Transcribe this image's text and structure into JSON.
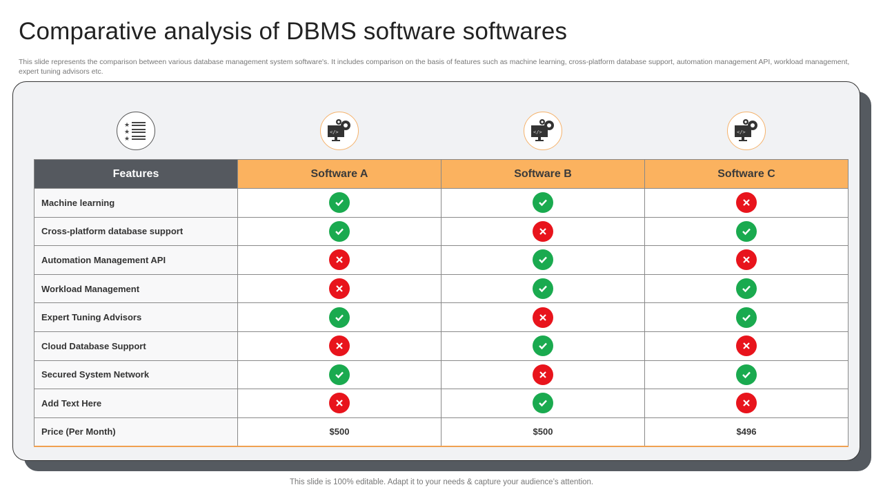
{
  "title": "Comparative analysis of DBMS software softwares",
  "description": "This slide represents the comparison between various database management system software's. It includes comparison on the basis of features such as machine learning, cross-platform database support, automation management API,  workload management, expert tuning advisors etc.",
  "icons": [
    "feature-list-icon",
    "software-gear-monitor-icon"
  ],
  "colors": {
    "header_dark": "#55595f",
    "header_orange": "#fbb25f",
    "check": "#1aaa4f",
    "cross": "#e8141c"
  },
  "table": {
    "headers": [
      "Features",
      "Software A",
      "Software B",
      "Software C"
    ],
    "rows": [
      {
        "feature": "Machine learning",
        "values": [
          true,
          true,
          false
        ]
      },
      {
        "feature": "Cross-platform  database support",
        "values": [
          true,
          false,
          true
        ]
      },
      {
        "feature": "Automation Management API",
        "values": [
          false,
          true,
          false
        ]
      },
      {
        "feature": "Workload Management",
        "values": [
          false,
          true,
          true
        ]
      },
      {
        "feature": "Expert Tuning Advisors",
        "values": [
          true,
          false,
          true
        ]
      },
      {
        "feature": "Cloud Database Support",
        "values": [
          false,
          true,
          false
        ]
      },
      {
        "feature": "Secured System Network",
        "values": [
          true,
          false,
          true
        ]
      },
      {
        "feature": "Add  Text Here",
        "values": [
          false,
          true,
          false
        ]
      }
    ],
    "price": {
      "feature": "Price (Per Month)",
      "values": [
        "$500",
        "$500",
        "$496"
      ]
    }
  },
  "footer": "This slide is 100% editable. Adapt it to your needs & capture your audience’s attention."
}
